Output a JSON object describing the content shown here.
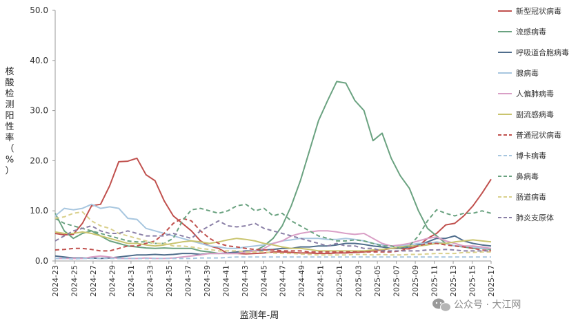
{
  "chart_data": {
    "type": "line",
    "xlabel": "监测年-周",
    "ylabel": "核酸检测阳性率（%）",
    "ylim": [
      0,
      50
    ],
    "yticks": [
      "0.0",
      "10.0",
      "20.0",
      "30.0",
      "40.0",
      "50.0"
    ],
    "x_tick_labels": [
      "2024-23",
      "2024-25",
      "2024-27",
      "2024-29",
      "2024-31",
      "2024-33",
      "2024-35",
      "2024-37",
      "2024-39",
      "2024-41",
      "2024-43",
      "2024-45",
      "2024-47",
      "2024-49",
      "2024-51",
      "2025-01",
      "2025-03",
      "2025-05",
      "2025-07",
      "2025-09",
      "2025-11",
      "2025-13",
      "2025-15",
      "2025-17"
    ],
    "legend_position": "right",
    "grid": false,
    "series": [
      {
        "name": "新型冠状病毒",
        "color": "#c0504d",
        "dash": false,
        "values": [
          5.5,
          5.2,
          5.3,
          7.5,
          11.0,
          11.3,
          15.0,
          19.8,
          19.9,
          20.5,
          17.2,
          16.0,
          12.0,
          9.0,
          7.5,
          6.0,
          4.0,
          3.0,
          2.5,
          1.5,
          1.5,
          1.4,
          1.5,
          1.6,
          1.8,
          1.8,
          1.7,
          1.6,
          1.6,
          1.5,
          1.5,
          1.6,
          1.6,
          1.7,
          1.8,
          2.0,
          2.2,
          2.5,
          2.5,
          2.4,
          3.0,
          4.5,
          5.5,
          7.2,
          7.5,
          9.0,
          11.0,
          13.5,
          16.3
        ]
      },
      {
        "name": "流感病毒",
        "color": "#6aa280",
        "dash": false,
        "values": [
          9.5,
          6.0,
          4.5,
          5.5,
          6.0,
          5.0,
          4.0,
          3.5,
          3.0,
          2.8,
          2.6,
          2.5,
          2.6,
          2.5,
          2.5,
          2.5,
          2.0,
          1.8,
          1.5,
          1.5,
          1.6,
          1.8,
          2.0,
          3.0,
          4.5,
          7.0,
          11.0,
          16.0,
          22.0,
          28.0,
          32.0,
          35.8,
          35.5,
          32.0,
          30.0,
          24.0,
          25.5,
          20.5,
          17.0,
          14.5,
          10.0,
          6.5,
          5.0,
          3.5,
          3.0,
          2.8,
          2.5,
          2.5,
          2.3
        ]
      },
      {
        "name": "呼吸道合胞病毒",
        "color": "#4f6d8c",
        "dash": false,
        "values": [
          1.0,
          0.8,
          0.6,
          0.6,
          0.6,
          0.5,
          0.6,
          0.8,
          1.0,
          1.2,
          1.2,
          1.3,
          1.2,
          1.3,
          1.5,
          1.5,
          1.3,
          1.5,
          1.5,
          1.6,
          1.8,
          2.0,
          2.0,
          2.2,
          2.3,
          2.5,
          2.5,
          2.8,
          2.8,
          3.0,
          3.0,
          3.2,
          3.5,
          3.5,
          3.3,
          3.0,
          2.8,
          2.5,
          2.6,
          2.8,
          3.2,
          3.8,
          4.5,
          4.5,
          5.0,
          4.0,
          3.5,
          3.2,
          3.0
        ]
      },
      {
        "name": "腺病毒",
        "color": "#a7c6df",
        "dash": false,
        "values": [
          9.0,
          10.5,
          10.2,
          10.5,
          11.3,
          10.5,
          10.8,
          10.5,
          8.5,
          8.3,
          6.5,
          6.0,
          5.5,
          5.0,
          4.5,
          4.0,
          3.5,
          3.0,
          2.8,
          2.5,
          2.5,
          2.8,
          3.0,
          3.2,
          3.5,
          4.0,
          4.2,
          4.5,
          4.5,
          4.5,
          4.3,
          4.3,
          4.5,
          4.3,
          4.0,
          3.5,
          3.2,
          3.0,
          3.0,
          3.2,
          3.5,
          3.5,
          3.8,
          3.5,
          3.0,
          3.0,
          2.8,
          2.5,
          2.5
        ]
      },
      {
        "name": "人偏肺病毒",
        "color": "#d99fc6",
        "dash": false,
        "values": [
          0.5,
          0.5,
          0.5,
          0.5,
          0.8,
          1.0,
          0.8,
          0.5,
          0.5,
          0.5,
          0.6,
          0.5,
          0.5,
          0.6,
          0.8,
          1.0,
          1.2,
          1.5,
          1.5,
          1.5,
          1.5,
          1.8,
          2.0,
          2.5,
          3.5,
          4.0,
          5.0,
          5.5,
          5.8,
          6.0,
          6.0,
          5.8,
          5.5,
          5.3,
          5.5,
          4.5,
          3.5,
          3.0,
          3.2,
          3.5,
          4.0,
          4.5,
          4.8,
          4.0,
          3.5,
          3.0,
          3.0,
          2.8,
          2.5
        ]
      },
      {
        "name": "副流感病毒",
        "color": "#c9c46e",
        "dash": false,
        "values": [
          5.8,
          5.5,
          5.5,
          5.8,
          5.5,
          5.0,
          4.5,
          4.0,
          3.5,
          3.5,
          3.2,
          3.0,
          3.2,
          3.5,
          3.8,
          4.0,
          3.8,
          3.5,
          3.8,
          4.2,
          4.5,
          4.3,
          4.0,
          3.5,
          3.2,
          2.8,
          2.5,
          2.5,
          2.3,
          2.0,
          2.0,
          2.0,
          2.0,
          2.0,
          2.0,
          2.2,
          2.3,
          2.5,
          2.8,
          3.0,
          3.0,
          3.2,
          3.5,
          3.5,
          3.8,
          4.0,
          4.2,
          4.0,
          3.8
        ]
      },
      {
        "name": "普通冠状病毒",
        "color": "#c0504d",
        "dash": true,
        "values": [
          2.2,
          2.3,
          2.5,
          2.5,
          2.3,
          2.0,
          2.0,
          2.5,
          3.0,
          3.0,
          3.5,
          4.0,
          5.5,
          7.5,
          8.5,
          8.0,
          6.0,
          4.5,
          3.5,
          3.0,
          2.8,
          2.5,
          2.3,
          2.2,
          2.2,
          2.0,
          2.0,
          2.0,
          1.8,
          1.8,
          1.8,
          1.8,
          1.8,
          1.8,
          1.8,
          1.8,
          1.8,
          1.8,
          2.0,
          2.5,
          3.0,
          3.5,
          3.5,
          3.2,
          3.0,
          2.8,
          2.5,
          2.2,
          2.0
        ]
      },
      {
        "name": "博卡病毒",
        "color": "#a7c6df",
        "dash": true,
        "values": [
          0.5,
          0.5,
          0.4,
          0.5,
          0.5,
          0.5,
          0.5,
          0.5,
          0.5,
          0.5,
          0.5,
          0.5,
          0.5,
          0.5,
          0.5,
          0.5,
          0.6,
          0.6,
          0.6,
          0.7,
          0.8,
          0.8,
          0.8,
          0.8,
          0.8,
          0.8,
          0.8,
          0.8,
          0.8,
          0.8,
          0.8,
          0.8,
          0.8,
          0.8,
          0.8,
          0.8,
          0.8,
          0.8,
          0.8,
          0.8,
          0.8,
          0.8,
          0.8,
          0.8,
          0.8,
          0.8,
          0.8,
          0.8,
          0.8
        ]
      },
      {
        "name": "鼻病毒",
        "color": "#6aa280",
        "dash": true,
        "values": [
          8.5,
          7.5,
          7.0,
          6.5,
          6.0,
          5.5,
          5.0,
          4.5,
          4.0,
          3.8,
          3.8,
          3.5,
          3.5,
          4.5,
          8.0,
          10.2,
          10.5,
          10.0,
          9.5,
          10.0,
          11.0,
          11.3,
          10.0,
          10.5,
          9.0,
          9.5,
          8.0,
          7.0,
          6.0,
          5.0,
          4.5,
          4.0,
          4.0,
          4.2,
          4.0,
          3.5,
          3.0,
          3.0,
          2.5,
          3.0,
          5.0,
          8.0,
          10.2,
          9.5,
          9.0,
          9.5,
          9.5,
          10.0,
          9.5
        ]
      },
      {
        "name": "肠道病毒",
        "color": "#d9d08c",
        "dash": true,
        "values": [
          8.5,
          8.8,
          9.5,
          9.8,
          8.0,
          7.0,
          6.5,
          5.5,
          5.0,
          4.5,
          4.0,
          3.5,
          3.5,
          3.0,
          3.0,
          2.8,
          2.5,
          2.3,
          2.0,
          2.0,
          2.0,
          1.8,
          1.8,
          1.8,
          1.6,
          1.5,
          1.5,
          1.4,
          1.3,
          1.2,
          1.2,
          1.2,
          1.2,
          1.3,
          1.3,
          1.2,
          1.3,
          1.2,
          1.2,
          1.3,
          1.3,
          1.4,
          1.5,
          1.5,
          1.5,
          1.7,
          1.7,
          1.8,
          1.8
        ]
      },
      {
        "name": "肺炎支原体",
        "color": "#8a7fa6",
        "dash": true,
        "values": [
          4.0,
          5.0,
          6.0,
          6.5,
          7.0,
          6.0,
          5.5,
          5.5,
          6.0,
          5.5,
          5.0,
          5.0,
          5.0,
          5.5,
          5.0,
          4.5,
          6.0,
          7.0,
          8.0,
          7.0,
          6.8,
          7.0,
          7.5,
          6.5,
          6.0,
          5.5,
          5.0,
          4.5,
          4.0,
          3.5,
          3.0,
          3.5,
          3.0,
          3.0,
          2.5,
          2.5,
          2.0,
          2.0,
          2.0,
          2.0,
          2.0,
          2.2,
          2.2,
          2.3,
          2.2,
          2.0,
          2.0,
          2.0,
          2.0
        ]
      }
    ]
  },
  "watermark": {
    "icon": "wechat-icon",
    "text": "公众号 · 大江网"
  }
}
